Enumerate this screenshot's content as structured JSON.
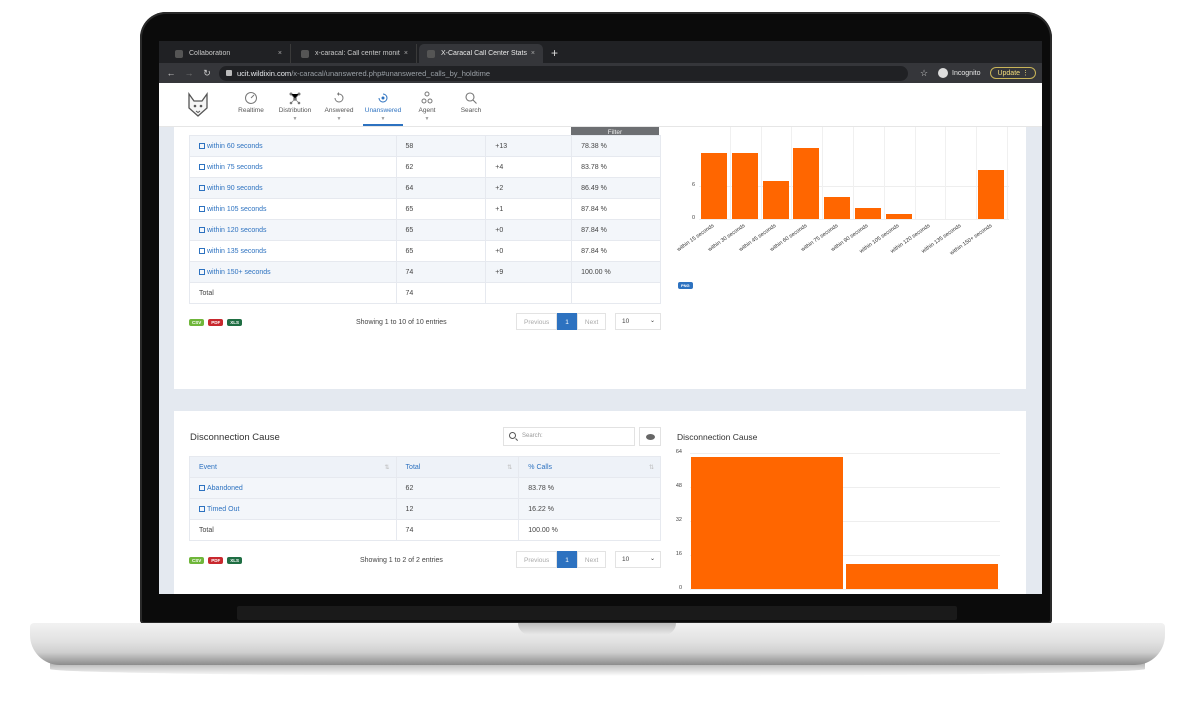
{
  "browser": {
    "tabs": [
      {
        "label": "Collaboration",
        "active": false
      },
      {
        "label": "x-caracal: Call center monito",
        "active": false
      },
      {
        "label": "X-Caracal Call Center Stats",
        "active": true
      }
    ],
    "new_tab": "+",
    "close": "×",
    "url_host": "ucit.wildixin.com",
    "url_path": "/x-caracal/unanswered.php#unanswered_calls_by_holdtime",
    "incognito_label": "Incognito",
    "update_label": "Update"
  },
  "nav": {
    "items": [
      {
        "label": "Realtime",
        "icon": "gauge-icon",
        "caret": false,
        "active": false
      },
      {
        "label": "Distribution",
        "icon": "network-icon",
        "caret": true,
        "active": false
      },
      {
        "label": "Answered",
        "icon": "answered-icon",
        "caret": true,
        "active": false
      },
      {
        "label": "Unanswered",
        "icon": "unanswered-icon",
        "caret": true,
        "active": true
      },
      {
        "label": "Agent",
        "icon": "agents-icon",
        "caret": true,
        "active": false
      },
      {
        "label": "Search",
        "icon": "search-icon",
        "caret": false,
        "active": false
      }
    ]
  },
  "holdtime": {
    "filter_label": "Filter",
    "rows": [
      {
        "label": "within 60 seconds",
        "total": "58",
        "delta": "+13",
        "pct": "78.38 %"
      },
      {
        "label": "within 75 seconds",
        "total": "62",
        "delta": "+4",
        "pct": "83.78 %"
      },
      {
        "label": "within 90 seconds",
        "total": "64",
        "delta": "+2",
        "pct": "86.49 %"
      },
      {
        "label": "within 105 seconds",
        "total": "65",
        "delta": "+1",
        "pct": "87.84 %"
      },
      {
        "label": "within 120 seconds",
        "total": "65",
        "delta": "+0",
        "pct": "87.84 %"
      },
      {
        "label": "within 135 seconds",
        "total": "65",
        "delta": "+0",
        "pct": "87.84 %"
      },
      {
        "label": "within 150+ seconds",
        "total": "74",
        "delta": "+9",
        "pct": "100.00 %"
      }
    ],
    "total_row": {
      "label": "Total",
      "total": "74",
      "delta": "",
      "pct": ""
    },
    "exports": [
      "CSV",
      "PDF",
      "XLS"
    ],
    "showing": "Showing 1 to 10 of 10 entries",
    "pager": {
      "prev": "Previous",
      "page": "1",
      "next": "Next"
    },
    "page_length": "10",
    "png_label": "PNG"
  },
  "disconnection": {
    "title": "Disconnection Cause",
    "search_placeholder": "Search:",
    "columns": [
      "Event",
      "Total",
      "% Calls"
    ],
    "rows": [
      {
        "event": "Abandoned",
        "total": "62",
        "pct": "83.78 %"
      },
      {
        "event": "Timed Out",
        "total": "12",
        "pct": "16.22 %"
      }
    ],
    "total_row": {
      "event": "Total",
      "total": "74",
      "pct": "100.00 %"
    },
    "exports": [
      "CSV",
      "PDF",
      "XLS"
    ],
    "showing": "Showing 1 to 2 of 2 entries",
    "pager": {
      "prev": "Previous",
      "page": "1",
      "next": "Next"
    },
    "page_length": "10",
    "chart_title": "Disconnection Cause"
  },
  "colors": {
    "bar": "#ff6600",
    "accent": "#2d72c0",
    "page_bg": "#e4e9f0"
  },
  "chart_data": [
    {
      "type": "bar",
      "title": "",
      "categories": [
        "within 15 seconds",
        "within 30 seconds",
        "within 45 seconds",
        "within 60 seconds",
        "within 75 seconds",
        "within 90 seconds",
        "within 105 seconds",
        "within 120 seconds",
        "within 135 seconds",
        "within 150+ seconds"
      ],
      "values": [
        12,
        12,
        7,
        13,
        4,
        2,
        1,
        0,
        0,
        9
      ],
      "yticks": [
        0,
        6
      ],
      "xlabel": "",
      "ylabel": "",
      "note": "top of chart is scrolled out of view; first, second and fourth bars are clipped",
      "grid": true
    },
    {
      "type": "bar",
      "title": "Disconnection Cause",
      "categories": [
        "Abandoned",
        "Timed Out"
      ],
      "values": [
        62,
        12
      ],
      "yticks": [
        0,
        16,
        32,
        48,
        64
      ],
      "ylim": [
        0,
        64
      ],
      "xlabel": "",
      "ylabel": "",
      "grid": true
    }
  ]
}
